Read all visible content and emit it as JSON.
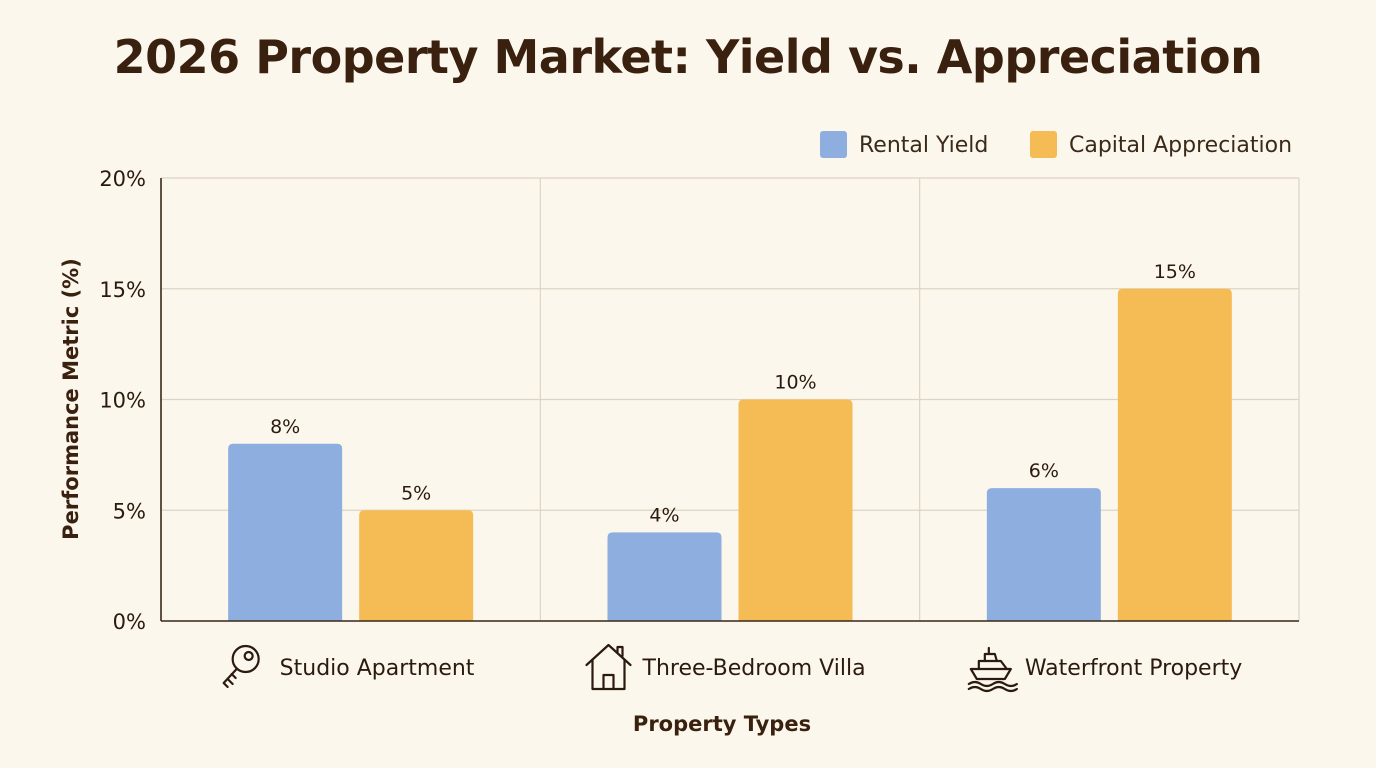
{
  "chart_data": {
    "type": "bar",
    "title": "2026 Property Market: Yield vs. Appreciation",
    "xlabel": "Property Types",
    "ylabel": "Performance Metric (%)",
    "categories": [
      "Studio Apartment",
      "Three-Bedroom Villa",
      "Waterfront Property"
    ],
    "category_icons": [
      "key-icon",
      "house-icon",
      "boat-icon"
    ],
    "series": [
      {
        "name": "Rental Yield",
        "values": [
          8,
          4,
          6
        ],
        "color": "#8eaee0"
      },
      {
        "name": "Capital Appreciation",
        "values": [
          5,
          10,
          15
        ],
        "color": "#f5bb55"
      }
    ],
    "ylim": [
      0,
      20
    ],
    "yticks": [
      0,
      5,
      10,
      15,
      20
    ],
    "tick_format": "{v}%",
    "grid": true,
    "legend_position": "top-right"
  }
}
